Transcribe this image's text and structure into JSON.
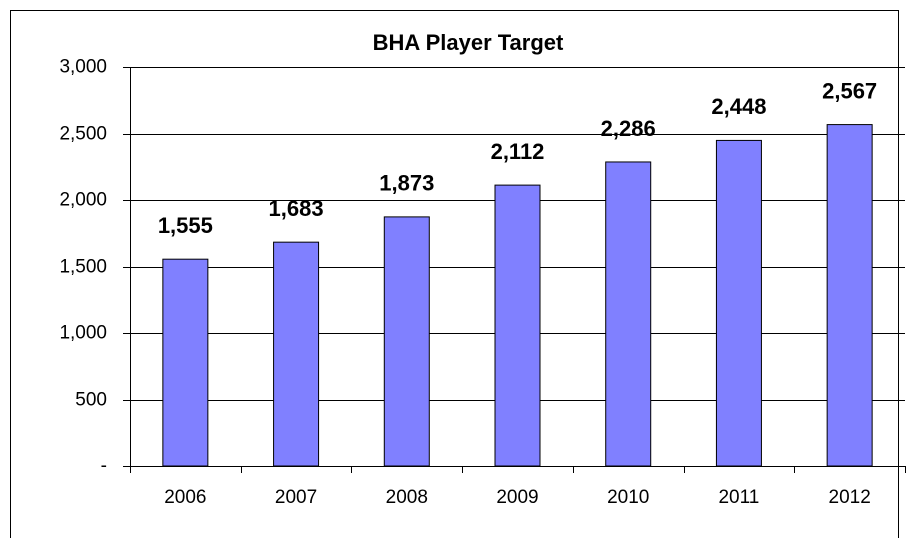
{
  "chart_data": {
    "type": "bar",
    "title": "BHA Player Target",
    "categories": [
      "2006",
      "2007",
      "2008",
      "2009",
      "2010",
      "2011",
      "2012"
    ],
    "values": [
      1555,
      1683,
      1873,
      2112,
      2286,
      2448,
      2567
    ],
    "value_labels": [
      "1,555",
      "1,683",
      "1,873",
      "2,112",
      "2,286",
      "2,448",
      "2,567"
    ],
    "color": "#8080ff",
    "ylim": [
      0,
      3000
    ],
    "yticks": [
      {
        "value": 0,
        "label": "-"
      },
      500,
      {
        "value": 1000,
        "label": "1,000"
      },
      {
        "value": 1500,
        "label": "1,500"
      },
      {
        "value": 2000,
        "label": "2,000"
      },
      {
        "value": 2500,
        "label": "2,500"
      },
      {
        "value": 3000,
        "label": "3,000"
      }
    ],
    "grid": true
  }
}
